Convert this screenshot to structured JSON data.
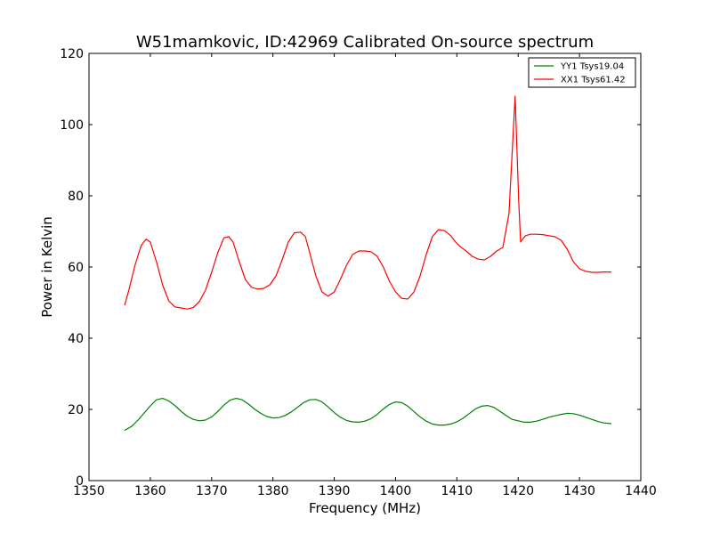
{
  "chart_data": {
    "type": "line",
    "title": "W51mamkovic, ID:42969 Calibrated On-source spectrum",
    "xlabel": "Frequency (MHz)",
    "ylabel": "Power in Kelvin",
    "xlim": [
      1350,
      1440
    ],
    "ylim": [
      0,
      120
    ],
    "xticks": [
      1350,
      1360,
      1370,
      1380,
      1390,
      1400,
      1410,
      1420,
      1430,
      1440
    ],
    "yticks": [
      0,
      20,
      40,
      60,
      80,
      100,
      120
    ],
    "grid": false,
    "legend_position": "top-right",
    "series": [
      {
        "name": "YY1 Tsys19.04",
        "color": "#008000",
        "x": [
          1355.8,
          1357,
          1358,
          1359,
          1360,
          1361,
          1362,
          1363,
          1364,
          1365,
          1366,
          1367,
          1368,
          1369,
          1370,
          1371,
          1372,
          1373,
          1374,
          1375,
          1376,
          1377,
          1378,
          1379,
          1380,
          1381,
          1382,
          1383,
          1384,
          1385,
          1386,
          1387,
          1388,
          1389,
          1390,
          1391,
          1392,
          1393,
          1394,
          1395,
          1396,
          1397,
          1398,
          1399,
          1400,
          1401,
          1402,
          1403,
          1404,
          1405,
          1406,
          1407,
          1408,
          1409,
          1410,
          1411,
          1412,
          1413,
          1414,
          1415,
          1416,
          1417,
          1418,
          1419,
          1420,
          1421,
          1422,
          1423,
          1424,
          1425,
          1426,
          1427,
          1428,
          1429,
          1430,
          1431,
          1432,
          1433,
          1434,
          1435.2
        ],
        "values": [
          14.1,
          15.3,
          17.0,
          19.0,
          21.0,
          22.7,
          23.1,
          22.4,
          21.1,
          19.5,
          18.1,
          17.2,
          16.8,
          17.0,
          17.9,
          19.4,
          21.2,
          22.6,
          23.1,
          22.7,
          21.5,
          20.1,
          18.9,
          18.0,
          17.6,
          17.7,
          18.3,
          19.3,
          20.6,
          21.9,
          22.7,
          22.8,
          22.1,
          20.7,
          19.1,
          17.8,
          16.9,
          16.5,
          16.4,
          16.7,
          17.4,
          18.6,
          20.1,
          21.4,
          22.1,
          21.9,
          20.9,
          19.4,
          17.9,
          16.7,
          15.9,
          15.6,
          15.6,
          15.9,
          16.5,
          17.5,
          18.8,
          20.1,
          20.9,
          21.1,
          20.6,
          19.5,
          18.3,
          17.2,
          16.8,
          16.4,
          16.4,
          16.7,
          17.2,
          17.8,
          18.2,
          18.6,
          18.9,
          18.8,
          18.4,
          17.8,
          17.2,
          16.6,
          16.2,
          16.0
        ]
      },
      {
        "name": "XX1 Tsys61.42",
        "color": "#ff0000",
        "x": [
          1355.8,
          1356.5,
          1357.5,
          1358.5,
          1359.3,
          1360,
          1361,
          1362,
          1363,
          1364,
          1365,
          1366,
          1367,
          1368,
          1369,
          1370,
          1371,
          1372,
          1372.8,
          1373.5,
          1374.5,
          1375.5,
          1376.5,
          1377.5,
          1378.5,
          1379.5,
          1380.5,
          1381.5,
          1382.5,
          1383.5,
          1384.5,
          1385.3,
          1386,
          1387,
          1388,
          1389,
          1390,
          1391,
          1392,
          1393,
          1394,
          1395,
          1396,
          1397,
          1398,
          1399,
          1400,
          1401,
          1402,
          1403,
          1404,
          1405,
          1406,
          1407,
          1408,
          1409,
          1409.8,
          1410.5,
          1411.5,
          1412.5,
          1413.5,
          1414.5,
          1415.5,
          1416.5,
          1417.5,
          1418.5,
          1419.5,
          1420.1,
          1420.4,
          1420.8,
          1421.2,
          1422,
          1423,
          1424,
          1425,
          1426,
          1427,
          1428,
          1429,
          1430,
          1431,
          1432,
          1433,
          1434,
          1435.2
        ],
        "values": [
          49.2,
          53.5,
          60.5,
          66.0,
          67.8,
          67.0,
          61.5,
          55.0,
          50.5,
          48.8,
          48.5,
          48.2,
          48.6,
          50.3,
          53.5,
          58.5,
          64.0,
          68.2,
          68.5,
          67.0,
          61.5,
          56.5,
          54.3,
          53.8,
          54.0,
          55.0,
          57.5,
          62.0,
          67.0,
          69.6,
          69.8,
          68.5,
          64.0,
          57.5,
          53.0,
          51.8,
          53.0,
          56.5,
          60.5,
          63.5,
          64.5,
          64.5,
          64.3,
          63.0,
          60.0,
          56.0,
          53.0,
          51.2,
          51.0,
          53.0,
          57.5,
          63.5,
          68.5,
          70.5,
          70.2,
          68.8,
          67.0,
          65.8,
          64.5,
          63.0,
          62.2,
          62.0,
          63.0,
          64.5,
          65.5,
          75.0,
          108.0,
          78.0,
          67.0,
          68.0,
          68.8,
          69.2,
          69.2,
          69.1,
          68.8,
          68.5,
          67.5,
          65.0,
          61.5,
          59.5,
          58.8,
          58.5,
          58.5,
          58.6,
          58.6
        ]
      }
    ]
  }
}
